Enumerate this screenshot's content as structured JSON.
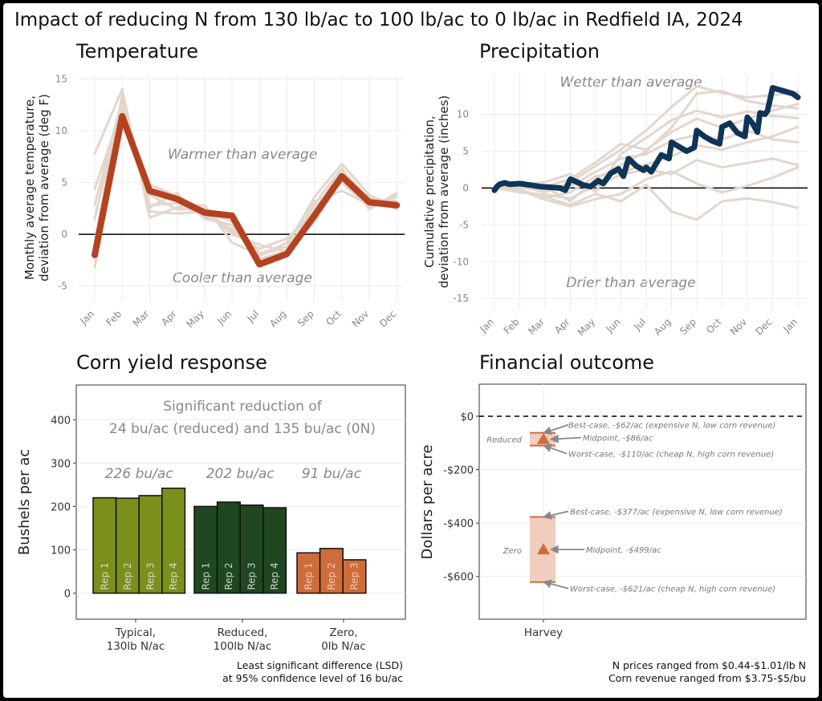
{
  "title": "Impact of reducing N from 130 lb/ac to 100 lb/ac to 0 lb/ac in Redfield IA, 2024",
  "chart_data": [
    {
      "id": "temperature",
      "type": "line",
      "title": "Temperature",
      "ylabel_lines": [
        "Monthly average temperature,",
        "deviation from average (deg F)"
      ],
      "categories": [
        "Jan",
        "Feb",
        "Mar",
        "Apr",
        "May",
        "Jun",
        "Jul",
        "Aug",
        "Sep",
        "Oct",
        "Nov",
        "Dec"
      ],
      "ylim": [
        -6.5,
        15.5
      ],
      "yticks": [
        -5,
        0,
        5,
        10,
        15
      ],
      "series": [
        {
          "values": [
            -2,
            11.4,
            4.2,
            3.4,
            2.1,
            1.8,
            -2.9,
            -1.9,
            1.8,
            5.6,
            3.1,
            2.8
          ],
          "color": "#b5421f",
          "highlight": true
        },
        {
          "values": [
            7.8,
            14.0,
            1.6,
            2.6,
            2.8,
            -0.8,
            -2.0,
            -1.2,
            3.6,
            6.8,
            3.8,
            2.4
          ],
          "color": "#e3d6cc"
        },
        {
          "values": [
            1.5,
            12.8,
            2.6,
            4.0,
            1.5,
            0.9,
            -2.4,
            -1.6,
            2.6,
            5.0,
            2.6,
            3.9
          ],
          "color": "#e3d6cc"
        },
        {
          "values": [
            4.4,
            12.2,
            3.8,
            2.4,
            2.5,
            0.2,
            -1.4,
            -0.4,
            2.2,
            6.2,
            3.4,
            3.2
          ],
          "color": "#e3d6cc"
        },
        {
          "values": [
            -0.8,
            13.4,
            2.8,
            3.0,
            1.8,
            0.5,
            -2.1,
            -0.8,
            3.2,
            4.2,
            2.9,
            3.6
          ],
          "color": "#e3d6cc"
        },
        {
          "values": [
            -3.2,
            11.8,
            4.8,
            3.7,
            2.3,
            1.2,
            -1.8,
            -1.2,
            1.2,
            5.4,
            3.6,
            3.0
          ],
          "color": "#e3d6cc"
        },
        {
          "values": [
            2.8,
            13.0,
            2.2,
            2.0,
            2.2,
            0.0,
            -1.0,
            -1.7,
            2.9,
            6.4,
            2.4,
            4.0
          ],
          "color": "#e3d6cc"
        }
      ],
      "annotations": [
        "Warmer than average",
        "Cooler than average"
      ]
    },
    {
      "id": "precipitation",
      "type": "line",
      "title": "Precipitation",
      "ylabel_lines": [
        "Cumulative precipitation,",
        "deviation from average (inches)"
      ],
      "xticks": [
        "Jan",
        "Feb",
        "Mar",
        "Apr",
        "May",
        "Jun",
        "Jul",
        "Aug",
        "Sep",
        "Oct",
        "Nov",
        "Dec",
        "Jan"
      ],
      "xlim": [
        0,
        12
      ],
      "ylim": [
        -16.5,
        15.5
      ],
      "yticks": [
        -15,
        -10,
        -5,
        0,
        5,
        10
      ],
      "series": [
        {
          "x": [
            0,
            0.1,
            0.2,
            0.4,
            0.6,
            1.0,
            1.4,
            1.8,
            2.2,
            2.6,
            2.8,
            3.0,
            3.2,
            3.5,
            3.8,
            4.1,
            4.3,
            4.6,
            4.9,
            5.1,
            5.3,
            5.6,
            5.9,
            6.0,
            6.2,
            6.6,
            6.9,
            7.0,
            7.2,
            7.6,
            7.9,
            8.0,
            8.3,
            8.6,
            8.9,
            9.0,
            9.3,
            9.6,
            9.9,
            10.0,
            10.2,
            10.4,
            10.5,
            10.7,
            10.8,
            11.0,
            11.4,
            11.8,
            12.0
          ],
          "y": [
            -0.3,
            0.2,
            0.5,
            0.7,
            0.5,
            0.6,
            0.4,
            0.2,
            0.1,
            0.0,
            -0.3,
            1.2,
            0.9,
            0.4,
            0.2,
            1.0,
            0.6,
            2.0,
            2.6,
            1.6,
            4.0,
            3.0,
            2.4,
            2.8,
            2.2,
            4.5,
            4.0,
            6.2,
            5.8,
            5.0,
            5.5,
            7.8,
            7.0,
            6.4,
            6.0,
            8.3,
            8.8,
            7.5,
            7.0,
            9.6,
            8.8,
            7.6,
            10.2,
            10.0,
            10.5,
            13.6,
            13.2,
            12.8,
            12.3
          ],
          "color": "#0f3556",
          "highlight": true
        },
        {
          "x": [
            0,
            1,
            2,
            3,
            4,
            5,
            6,
            7,
            8,
            9,
            10,
            11,
            12
          ],
          "y": [
            0,
            0.6,
            0.1,
            -1.8,
            1.2,
            3.1,
            5.0,
            8.2,
            12.8,
            13.2,
            11.8,
            11.2,
            10.8
          ],
          "color": "#e3d6cc"
        },
        {
          "x": [
            0,
            1,
            2,
            3,
            4,
            5,
            6,
            7,
            8,
            9,
            10,
            11,
            12
          ],
          "y": [
            0,
            -0.4,
            -1.2,
            -2.3,
            -0.8,
            -1.8,
            0.4,
            -3.2,
            -4.3,
            -1.8,
            -1.4,
            -1.9,
            -2.7
          ],
          "color": "#e3d6cc"
        },
        {
          "x": [
            0,
            1,
            2,
            3,
            4,
            5,
            6,
            7,
            8,
            9,
            10,
            11,
            12
          ],
          "y": [
            0,
            0.3,
            -0.6,
            0.8,
            3.0,
            5.2,
            7.8,
            11.0,
            13.8,
            12.9,
            12.3,
            12.6,
            13.0
          ],
          "color": "#e3d6cc"
        },
        {
          "x": [
            0,
            1,
            2,
            3,
            4,
            5,
            6,
            7,
            8,
            9,
            10,
            11,
            12
          ],
          "y": [
            0,
            -0.2,
            -1.3,
            -0.6,
            1.6,
            2.1,
            3.2,
            4.3,
            5.8,
            5.2,
            6.2,
            7.0,
            8.3
          ],
          "color": "#e3d6cc"
        },
        {
          "x": [
            0,
            1,
            2,
            3,
            4,
            5,
            6,
            7,
            8,
            9,
            10,
            11,
            12
          ],
          "y": [
            0,
            0.5,
            0.8,
            1.9,
            -0.5,
            4.6,
            6.8,
            9.2,
            10.5,
            9.6,
            10.4,
            9.8,
            9.5
          ],
          "color": "#e3d6cc"
        },
        {
          "x": [
            0,
            1,
            2,
            3,
            4,
            5,
            6,
            7,
            8,
            9,
            10,
            11,
            12
          ],
          "y": [
            0,
            -0.6,
            -0.9,
            -1.4,
            0.3,
            1.8,
            2.5,
            1.9,
            3.8,
            2.8,
            3.4,
            4.0,
            3.1
          ],
          "color": "#e3d6cc"
        },
        {
          "x": [
            0,
            1,
            2,
            3,
            4,
            5,
            6,
            7,
            8,
            9,
            10,
            11,
            12
          ],
          "y": [
            0,
            0.1,
            -0.4,
            0.2,
            2.2,
            4.0,
            4.6,
            6.4,
            7.2,
            6.6,
            7.8,
            6.6,
            6.2
          ],
          "color": "#e3d6cc"
        },
        {
          "x": [
            0,
            1,
            2,
            3,
            4,
            5,
            6,
            7,
            8,
            9,
            10,
            11,
            12
          ],
          "y": [
            0,
            -0.3,
            -1.6,
            -2.5,
            -1.5,
            -0.8,
            1.2,
            2.3,
            0.6,
            -0.6,
            0.3,
            1.4,
            2.8
          ],
          "color": "#e3d6cc"
        },
        {
          "x": [
            0,
            1,
            2,
            3,
            4,
            5,
            6,
            7,
            8,
            9,
            10,
            11,
            12
          ],
          "y": [
            0,
            0.4,
            0.2,
            1.2,
            3.5,
            6.0,
            5.2,
            7.6,
            9.4,
            8.2,
            9.4,
            10.5,
            11.4
          ],
          "color": "#e3d6cc"
        }
      ],
      "annotations": [
        "Wetter than average",
        "Drier than average"
      ]
    },
    {
      "id": "yield",
      "type": "bar",
      "title": "Corn yield response",
      "ylabel": "Bushels per ac",
      "ylim": [
        -60,
        480
      ],
      "yticks": [
        0,
        100,
        200,
        300,
        400
      ],
      "annotation_lines": [
        "Significant reduction of",
        "24 bu/ac (reduced) and 135 bu/ac (0N)"
      ],
      "groups": [
        {
          "label_lines": [
            "Typical,",
            "130lb N/ac"
          ],
          "mean_label": "226 bu/ac",
          "color": "#7b8f1d",
          "text_color": "#d7dcc0",
          "reps": [
            {
              "label": "Rep 1",
              "value": 220
            },
            {
              "label": "Rep 2",
              "value": 219
            },
            {
              "label": "Rep 3",
              "value": 225
            },
            {
              "label": "Rep 4",
              "value": 242
            }
          ]
        },
        {
          "label_lines": [
            "Reduced,",
            "100lb N/ac"
          ],
          "mean_label": "202 bu/ac",
          "color": "#1f4720",
          "text_color": "#c8d2c8",
          "reps": [
            {
              "label": "Rep 1",
              "value": 200
            },
            {
              "label": "Rep 2",
              "value": 210
            },
            {
              "label": "Rep 3",
              "value": 203
            },
            {
              "label": "Rep 4",
              "value": 197
            }
          ]
        },
        {
          "label_lines": [
            "Zero,",
            "0lb N/ac"
          ],
          "mean_label": "91 bu/ac",
          "color": "#cf6d3a",
          "text_color": "#f0c8b0",
          "reps": [
            {
              "label": "Rep 1",
              "value": 93
            },
            {
              "label": "Rep 2",
              "value": 103
            },
            {
              "label": "Rep 3",
              "value": 77
            }
          ]
        }
      ],
      "footnote_lines": [
        "Least significant difference (LSD)",
        "at 95% confidence level of 16 bu/ac"
      ]
    },
    {
      "id": "financial",
      "type": "range",
      "title": "Financial outcome",
      "ylabel": "Dollars per acre",
      "xcategory": "Harvey",
      "ylim": [
        -760,
        120
      ],
      "yticks": [
        0,
        -200,
        -400,
        -600
      ],
      "ytick_labels": [
        "$0",
        "-$200",
        "-$400",
        "-$600"
      ],
      "scenarios": [
        {
          "name": "Reduced",
          "best": -62,
          "mid": -86,
          "worst": -110,
          "best_label": "Best-case, -$62/ac (expensive N, low corn revenue)",
          "mid_label": "Midpoint, -$86/ac",
          "worst_label": "Worst-case, -$110/ac (cheap N,  high corn revenue)"
        },
        {
          "name": "Zero",
          "best": -377,
          "mid": -499,
          "worst": -621,
          "best_label": "Best-case, -$377/ac (expensive N, low corn revenue)",
          "mid_label": "Midpoint, -$499/ac",
          "worst_label": "Worst-case, -$621/ac (cheap N,  high corn revenue)"
        }
      ],
      "colors": {
        "fill": "#f0cdbd",
        "edge": "#cf6d3a",
        "marker": "#cf6d3a",
        "arrow": "#888888"
      },
      "footnote_lines": [
        "N prices ranged from $0.44-$1.01/lb N",
        "Corn revenue ranged from $3.75-$5/bu"
      ]
    }
  ]
}
